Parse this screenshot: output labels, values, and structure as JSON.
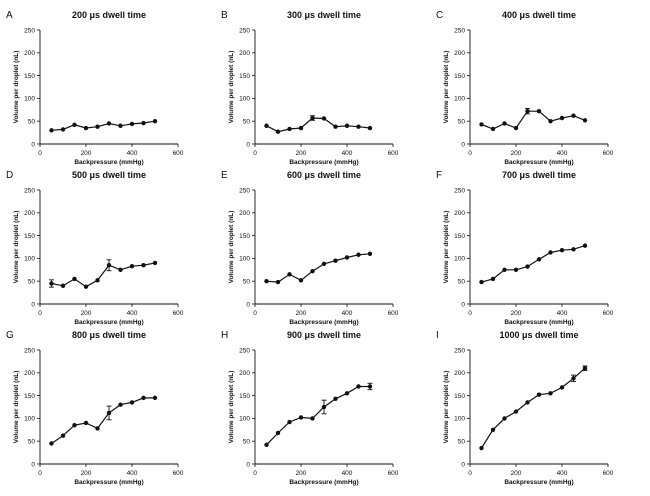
{
  "chart_data": [
    {
      "type": "line",
      "panel": "A",
      "title": "200 μs dwell time",
      "xlabel": "Backpressure (mmHg)",
      "ylabel": "Volume per droplet (nL)",
      "xlim": [
        0,
        600
      ],
      "ylim": [
        0,
        250
      ],
      "x_ticks": [
        0,
        200,
        400,
        600
      ],
      "y_ticks": [
        0,
        50,
        100,
        150,
        200,
        250
      ],
      "grid": false,
      "series": [
        {
          "x": [
            50,
            100,
            150,
            200,
            250,
            300,
            350,
            400,
            450,
            500
          ],
          "y": [
            30,
            32,
            42,
            35,
            38,
            45,
            40,
            44,
            46,
            50
          ],
          "error": [
            0,
            0,
            0,
            0,
            0,
            0,
            0,
            0,
            0,
            0
          ]
        }
      ]
    },
    {
      "type": "line",
      "panel": "B",
      "title": "300 μs dwell time",
      "xlabel": "Backpressure (mmHg)",
      "ylabel": "Volume per droplet (nL)",
      "xlim": [
        0,
        600
      ],
      "ylim": [
        0,
        250
      ],
      "x_ticks": [
        0,
        200,
        400,
        600
      ],
      "y_ticks": [
        0,
        50,
        100,
        150,
        200,
        250
      ],
      "grid": false,
      "series": [
        {
          "x": [
            50,
            100,
            150,
            200,
            250,
            300,
            350,
            400,
            450,
            500
          ],
          "y": [
            40,
            27,
            33,
            35,
            57,
            56,
            38,
            40,
            38,
            35
          ],
          "error": [
            0,
            0,
            0,
            0,
            5,
            0,
            0,
            0,
            0,
            0
          ]
        }
      ]
    },
    {
      "type": "line",
      "panel": "C",
      "title": "400 μs dwell time",
      "xlabel": "Backpressure (mmHg)",
      "ylabel": "Volume per droplet (nL)",
      "xlim": [
        0,
        600
      ],
      "ylim": [
        0,
        250
      ],
      "x_ticks": [
        0,
        200,
        400,
        600
      ],
      "y_ticks": [
        0,
        50,
        100,
        150,
        200,
        250
      ],
      "grid": false,
      "series": [
        {
          "x": [
            50,
            100,
            150,
            200,
            250,
            300,
            350,
            400,
            450,
            500
          ],
          "y": [
            43,
            33,
            45,
            35,
            72,
            72,
            50,
            57,
            62,
            52
          ],
          "error": [
            0,
            0,
            0,
            0,
            6,
            0,
            0,
            0,
            0,
            0
          ]
        }
      ]
    },
    {
      "type": "line",
      "panel": "D",
      "title": "500 μs dwell time",
      "xlabel": "Backpressure (mmHg)",
      "ylabel": "Volume per droplet (nL)",
      "xlim": [
        0,
        600
      ],
      "ylim": [
        0,
        250
      ],
      "x_ticks": [
        0,
        200,
        400,
        600
      ],
      "y_ticks": [
        0,
        50,
        100,
        150,
        200,
        250
      ],
      "grid": false,
      "series": [
        {
          "x": [
            50,
            100,
            150,
            200,
            250,
            300,
            350,
            400,
            450,
            500
          ],
          "y": [
            45,
            40,
            55,
            38,
            52,
            85,
            75,
            83,
            85,
            90
          ],
          "error": [
            8,
            0,
            0,
            0,
            0,
            12,
            0,
            0,
            0,
            0
          ]
        }
      ]
    },
    {
      "type": "line",
      "panel": "E",
      "title": "600 μs dwell time",
      "xlabel": "Backpressure (mmHg)",
      "ylabel": "Volume per droplet (nL)",
      "xlim": [
        0,
        600
      ],
      "ylim": [
        0,
        250
      ],
      "x_ticks": [
        0,
        200,
        400,
        600
      ],
      "y_ticks": [
        0,
        50,
        100,
        150,
        200,
        250
      ],
      "grid": false,
      "series": [
        {
          "x": [
            50,
            100,
            150,
            200,
            250,
            300,
            350,
            400,
            450,
            500
          ],
          "y": [
            50,
            48,
            65,
            52,
            72,
            88,
            95,
            102,
            108,
            110
          ],
          "error": [
            0,
            0,
            0,
            0,
            0,
            0,
            0,
            0,
            0,
            0
          ]
        }
      ]
    },
    {
      "type": "line",
      "panel": "F",
      "title": "700 μs dwell time",
      "xlabel": "Backpressure (mmHg)",
      "ylabel": "Volume per droplet (nL)",
      "xlim": [
        0,
        600
      ],
      "ylim": [
        0,
        250
      ],
      "x_ticks": [
        0,
        200,
        400,
        600
      ],
      "y_ticks": [
        0,
        50,
        100,
        150,
        200,
        250
      ],
      "grid": false,
      "series": [
        {
          "x": [
            50,
            100,
            150,
            200,
            250,
            300,
            350,
            400,
            450,
            500
          ],
          "y": [
            48,
            55,
            75,
            75,
            82,
            98,
            113,
            118,
            120,
            128
          ],
          "error": [
            0,
            0,
            0,
            0,
            0,
            0,
            0,
            0,
            0,
            0
          ]
        }
      ]
    },
    {
      "type": "line",
      "panel": "G",
      "title": "800 μs dwell time",
      "xlabel": "Backpressure (mmHg)",
      "ylabel": "Volume per droplet (nL)",
      "xlim": [
        0,
        600
      ],
      "ylim": [
        0,
        250
      ],
      "x_ticks": [
        0,
        200,
        400,
        600
      ],
      "y_ticks": [
        0,
        50,
        100,
        150,
        200,
        250
      ],
      "grid": false,
      "series": [
        {
          "x": [
            50,
            100,
            150,
            200,
            250,
            300,
            350,
            400,
            450,
            500
          ],
          "y": [
            45,
            62,
            85,
            90,
            78,
            112,
            130,
            135,
            145,
            145
          ],
          "error": [
            0,
            0,
            0,
            0,
            0,
            15,
            0,
            0,
            0,
            0
          ]
        }
      ]
    },
    {
      "type": "line",
      "panel": "H",
      "title": "900 μs dwell time",
      "xlabel": "Backpressure (mmHg)",
      "ylabel": "Volume per droplet (nL)",
      "xlim": [
        0,
        600
      ],
      "ylim": [
        0,
        250
      ],
      "x_ticks": [
        0,
        200,
        400,
        600
      ],
      "y_ticks": [
        0,
        50,
        100,
        150,
        200,
        250
      ],
      "grid": false,
      "series": [
        {
          "x": [
            50,
            100,
            150,
            200,
            250,
            300,
            350,
            400,
            450,
            500
          ],
          "y": [
            42,
            68,
            92,
            102,
            100,
            125,
            143,
            155,
            170,
            170
          ],
          "error": [
            0,
            0,
            0,
            0,
            0,
            15,
            0,
            0,
            0,
            7
          ]
        }
      ]
    },
    {
      "type": "line",
      "panel": "I",
      "title": "1000 μs dwell time",
      "xlabel": "Backpressure (mmHg)",
      "ylabel": "Volume per droplet (nL)",
      "xlim": [
        0,
        600
      ],
      "ylim": [
        0,
        250
      ],
      "x_ticks": [
        0,
        200,
        400,
        600
      ],
      "y_ticks": [
        0,
        50,
        100,
        150,
        200,
        250
      ],
      "grid": false,
      "series": [
        {
          "x": [
            50,
            100,
            150,
            200,
            250,
            300,
            350,
            400,
            450,
            500
          ],
          "y": [
            35,
            75,
            100,
            115,
            135,
            152,
            155,
            168,
            188,
            210
          ],
          "error": [
            0,
            0,
            0,
            0,
            0,
            0,
            0,
            0,
            7,
            5
          ]
        }
      ]
    }
  ]
}
